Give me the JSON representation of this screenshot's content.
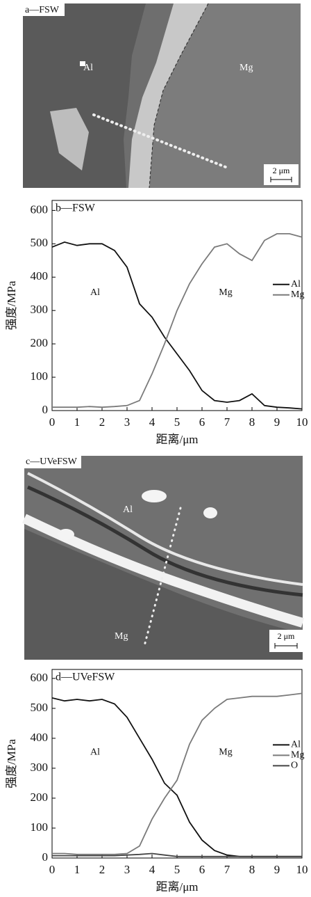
{
  "images": [
    {
      "label": "a—FSW",
      "phases": [
        "Al",
        "Mg"
      ],
      "scale": "2 μm"
    },
    {
      "label": "c—UVeFSW",
      "phases": [
        "Al",
        "Mg"
      ],
      "scale": "2 μm"
    }
  ],
  "chart_data": [
    {
      "type": "line",
      "title": "b—FSW",
      "xlabel": "距离/μm",
      "ylabel": "强度/MPa",
      "annotations": [
        "Al",
        "Mg"
      ],
      "x": [
        0,
        0.5,
        1,
        1.5,
        2,
        2.5,
        3,
        3.5,
        4,
        4.5,
        5,
        5.5,
        6,
        6.5,
        7,
        7.5,
        8,
        8.5,
        9,
        9.5,
        10
      ],
      "series": [
        {
          "name": "Al",
          "color": "#111111",
          "values": [
            490,
            505,
            495,
            500,
            500,
            480,
            430,
            320,
            280,
            220,
            170,
            120,
            60,
            30,
            25,
            30,
            50,
            15,
            10,
            8,
            5
          ]
        },
        {
          "name": "Mg",
          "color": "#7a7a7a",
          "values": [
            10,
            10,
            10,
            12,
            10,
            12,
            15,
            30,
            110,
            200,
            300,
            380,
            440,
            490,
            500,
            470,
            450,
            510,
            530,
            530,
            520
          ]
        }
      ],
      "xlim": [
        0,
        10
      ],
      "xticks": [
        0,
        1,
        2,
        3,
        4,
        5,
        6,
        7,
        8,
        9,
        10
      ],
      "ylim": [
        0,
        630
      ],
      "yticks": [
        0,
        100,
        200,
        300,
        400,
        500,
        600
      ],
      "legend": "upper right"
    },
    {
      "type": "line",
      "title": "d—UVeFSW",
      "xlabel": "距离/μm",
      "ylabel": "强度/MPa",
      "annotations": [
        "Al",
        "Mg"
      ],
      "x": [
        0,
        0.5,
        1,
        1.5,
        2,
        2.5,
        3,
        3.5,
        4,
        4.5,
        5,
        5.5,
        6,
        6.5,
        7,
        7.5,
        8,
        8.5,
        9,
        9.5,
        10
      ],
      "series": [
        {
          "name": "Al",
          "color": "#111111",
          "values": [
            535,
            525,
            530,
            525,
            530,
            515,
            470,
            400,
            330,
            250,
            210,
            120,
            60,
            25,
            10,
            5,
            5,
            5,
            5,
            5,
            5
          ]
        },
        {
          "name": "Mg",
          "color": "#7a7a7a",
          "values": [
            15,
            15,
            12,
            12,
            12,
            12,
            15,
            40,
            130,
            200,
            260,
            380,
            460,
            500,
            530,
            535,
            540,
            540,
            540,
            545,
            550
          ]
        },
        {
          "name": "O",
          "color": "#444444",
          "values": [
            8,
            8,
            8,
            8,
            8,
            8,
            10,
            12,
            15,
            10,
            5,
            5,
            5,
            5,
            5,
            5,
            5,
            5,
            5,
            5,
            5
          ]
        }
      ],
      "xlim": [
        0,
        10
      ],
      "xticks": [
        0,
        1,
        2,
        3,
        4,
        5,
        6,
        7,
        8,
        9,
        10
      ],
      "ylim": [
        0,
        630
      ],
      "yticks": [
        0,
        100,
        200,
        300,
        400,
        500,
        600
      ],
      "legend": "upper right"
    }
  ]
}
